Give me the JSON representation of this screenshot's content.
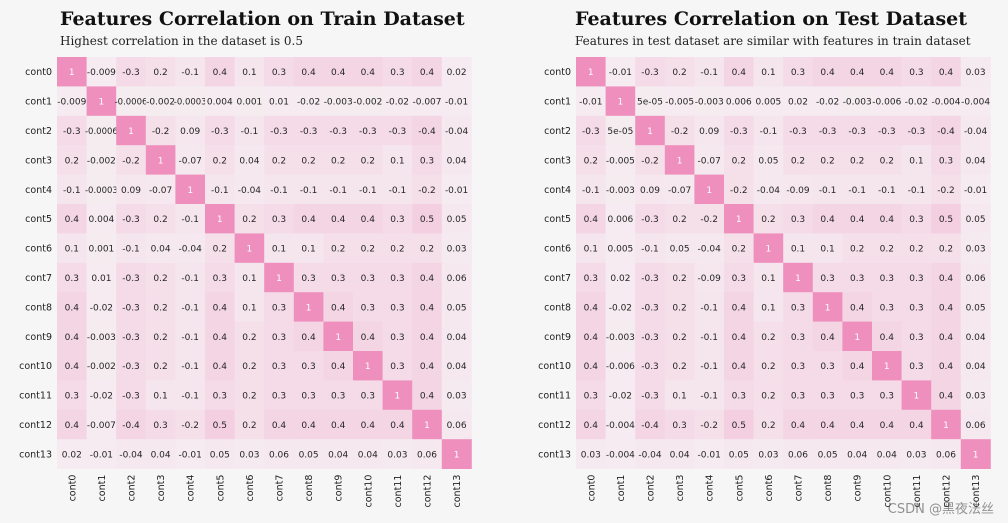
{
  "watermark": "CSDN @黑夜法丝",
  "chart_data": [
    {
      "type": "heatmap",
      "title": "Features Correlation on Train Dataset",
      "subtitle": "Highest correlation in the dataset is 0.5",
      "labels": [
        "cont0",
        "cont1",
        "cont2",
        "cont3",
        "cont4",
        "cont5",
        "cont6",
        "cont7",
        "cont8",
        "cont9",
        "cont10",
        "cont11",
        "cont12",
        "cont13"
      ],
      "cells": [
        [
          "1",
          "-0.009",
          "-0.3",
          "0.2",
          "-0.1",
          "0.4",
          "0.1",
          "0.3",
          "0.4",
          "0.4",
          "0.4",
          "0.3",
          "0.4",
          "0.02"
        ],
        [
          "-0.009",
          "1",
          "-0.0006",
          "-0.002",
          "-0.0003",
          "0.004",
          "0.001",
          "0.01",
          "-0.02",
          "-0.003",
          "-0.002",
          "-0.02",
          "-0.007",
          "-0.01"
        ],
        [
          "-0.3",
          "-0.0006",
          "1",
          "-0.2",
          "0.09",
          "-0.3",
          "-0.1",
          "-0.3",
          "-0.3",
          "-0.3",
          "-0.3",
          "-0.3",
          "-0.4",
          "-0.04"
        ],
        [
          "0.2",
          "-0.002",
          "-0.2",
          "1",
          "-0.07",
          "0.2",
          "0.04",
          "0.2",
          "0.2",
          "0.2",
          "0.2",
          "0.1",
          "0.3",
          "0.04"
        ],
        [
          "-0.1",
          "-0.0003",
          "0.09",
          "-0.07",
          "1",
          "-0.1",
          "-0.04",
          "-0.1",
          "-0.1",
          "-0.1",
          "-0.1",
          "-0.1",
          "-0.2",
          "-0.01"
        ],
        [
          "0.4",
          "0.004",
          "-0.3",
          "0.2",
          "-0.1",
          "1",
          "0.2",
          "0.3",
          "0.4",
          "0.4",
          "0.4",
          "0.3",
          "0.5",
          "0.05"
        ],
        [
          "0.1",
          "0.001",
          "-0.1",
          "0.04",
          "-0.04",
          "0.2",
          "1",
          "0.1",
          "0.1",
          "0.2",
          "0.2",
          "0.2",
          "0.2",
          "0.03"
        ],
        [
          "0.3",
          "0.01",
          "-0.3",
          "0.2",
          "-0.1",
          "0.3",
          "0.1",
          "1",
          "0.3",
          "0.3",
          "0.3",
          "0.3",
          "0.4",
          "0.06"
        ],
        [
          "0.4",
          "-0.02",
          "-0.3",
          "0.2",
          "-0.1",
          "0.4",
          "0.1",
          "0.3",
          "1",
          "0.4",
          "0.3",
          "0.3",
          "0.4",
          "0.05"
        ],
        [
          "0.4",
          "-0.003",
          "-0.3",
          "0.2",
          "-0.1",
          "0.4",
          "0.2",
          "0.3",
          "0.4",
          "1",
          "0.4",
          "0.3",
          "0.4",
          "0.04"
        ],
        [
          "0.4",
          "-0.002",
          "-0.3",
          "0.2",
          "-0.1",
          "0.4",
          "0.2",
          "0.3",
          "0.3",
          "0.4",
          "1",
          "0.3",
          "0.4",
          "0.04"
        ],
        [
          "0.3",
          "-0.02",
          "-0.3",
          "0.1",
          "-0.1",
          "0.3",
          "0.2",
          "0.3",
          "0.3",
          "0.3",
          "0.3",
          "1",
          "0.4",
          "0.03"
        ],
        [
          "0.4",
          "-0.007",
          "-0.4",
          "0.3",
          "-0.2",
          "0.5",
          "0.2",
          "0.4",
          "0.4",
          "0.4",
          "0.4",
          "0.4",
          "1",
          "0.06"
        ],
        [
          "0.02",
          "-0.01",
          "-0.04",
          "0.04",
          "-0.01",
          "0.05",
          "0.03",
          "0.06",
          "0.05",
          "0.04",
          "0.04",
          "0.03",
          "0.06",
          "1"
        ]
      ]
    },
    {
      "type": "heatmap",
      "title": "Features Correlation on Test Dataset",
      "subtitle": "Features in test dataset are similar with features in train dataset",
      "labels": [
        "cont0",
        "cont1",
        "cont2",
        "cont3",
        "cont4",
        "cont5",
        "cont6",
        "cont7",
        "cont8",
        "cont9",
        "cont10",
        "cont11",
        "cont12",
        "cont13"
      ],
      "cells": [
        [
          "1",
          "-0.01",
          "-0.3",
          "0.2",
          "-0.1",
          "0.4",
          "0.1",
          "0.3",
          "0.4",
          "0.4",
          "0.4",
          "0.3",
          "0.4",
          "0.03"
        ],
        [
          "-0.01",
          "1",
          "5e-05",
          "-0.005",
          "-0.003",
          "0.006",
          "0.005",
          "0.02",
          "-0.02",
          "-0.003",
          "-0.006",
          "-0.02",
          "-0.004",
          "-0.004"
        ],
        [
          "-0.3",
          "5e-05",
          "1",
          "-0.2",
          "0.09",
          "-0.3",
          "-0.1",
          "-0.3",
          "-0.3",
          "-0.3",
          "-0.3",
          "-0.3",
          "-0.4",
          "-0.04"
        ],
        [
          "0.2",
          "-0.005",
          "-0.2",
          "1",
          "-0.07",
          "0.2",
          "0.05",
          "0.2",
          "0.2",
          "0.2",
          "0.2",
          "0.1",
          "0.3",
          "0.04"
        ],
        [
          "-0.1",
          "-0.003",
          "0.09",
          "-0.07",
          "1",
          "-0.2",
          "-0.04",
          "-0.09",
          "-0.1",
          "-0.1",
          "-0.1",
          "-0.1",
          "-0.2",
          "-0.01"
        ],
        [
          "0.4",
          "0.006",
          "-0.3",
          "0.2",
          "-0.2",
          "1",
          "0.2",
          "0.3",
          "0.4",
          "0.4",
          "0.4",
          "0.3",
          "0.5",
          "0.05"
        ],
        [
          "0.1",
          "0.005",
          "-0.1",
          "0.05",
          "-0.04",
          "0.2",
          "1",
          "0.1",
          "0.1",
          "0.2",
          "0.2",
          "0.2",
          "0.2",
          "0.03"
        ],
        [
          "0.3",
          "0.02",
          "-0.3",
          "0.2",
          "-0.09",
          "0.3",
          "0.1",
          "1",
          "0.3",
          "0.3",
          "0.3",
          "0.3",
          "0.4",
          "0.06"
        ],
        [
          "0.4",
          "-0.02",
          "-0.3",
          "0.2",
          "-0.1",
          "0.4",
          "0.1",
          "0.3",
          "1",
          "0.4",
          "0.3",
          "0.3",
          "0.4",
          "0.05"
        ],
        [
          "0.4",
          "-0.003",
          "-0.3",
          "0.2",
          "-0.1",
          "0.4",
          "0.2",
          "0.3",
          "0.4",
          "1",
          "0.4",
          "0.3",
          "0.4",
          "0.04"
        ],
        [
          "0.4",
          "-0.006",
          "-0.3",
          "0.2",
          "-0.1",
          "0.4",
          "0.2",
          "0.3",
          "0.3",
          "0.4",
          "1",
          "0.3",
          "0.4",
          "0.04"
        ],
        [
          "0.3",
          "-0.02",
          "-0.3",
          "0.1",
          "-0.1",
          "0.3",
          "0.2",
          "0.3",
          "0.3",
          "0.3",
          "0.3",
          "1",
          "0.4",
          "0.03"
        ],
        [
          "0.4",
          "-0.004",
          "-0.4",
          "0.3",
          "-0.2",
          "0.5",
          "0.2",
          "0.4",
          "0.4",
          "0.4",
          "0.4",
          "0.4",
          "1",
          "0.06"
        ],
        [
          "0.03",
          "-0.004",
          "-0.04",
          "0.04",
          "-0.01",
          "0.05",
          "0.03",
          "0.06",
          "0.05",
          "0.04",
          "0.04",
          "0.03",
          "0.06",
          "1"
        ]
      ]
    }
  ]
}
